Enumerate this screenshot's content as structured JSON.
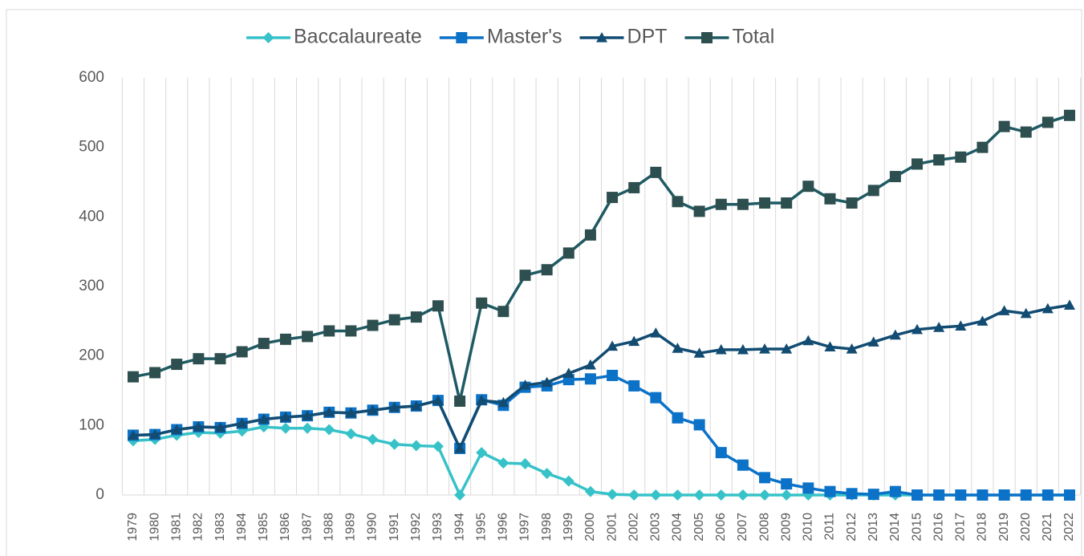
{
  "chart_data": {
    "type": "line",
    "categories": [
      "1979",
      "1980",
      "1981",
      "1982",
      "1983",
      "1984",
      "1985",
      "1986",
      "1987",
      "1988",
      "1989",
      "1990",
      "1991",
      "1992",
      "1993",
      "1994",
      "1995",
      "1996",
      "1997",
      "1998",
      "1999",
      "2000",
      "2001",
      "2002",
      "2003",
      "2004",
      "2005",
      "2006",
      "2007",
      "2008",
      "2009",
      "2010",
      "2011",
      "2012",
      "2013",
      "2014",
      "2015",
      "2016",
      "2017",
      "2018",
      "2019",
      "2020",
      "2021",
      "2022"
    ],
    "series": [
      {
        "name": "Baccalaureate",
        "color": "#36c2c8",
        "marker": "diamond",
        "values": [
          78,
          80,
          86,
          90,
          89,
          92,
          98,
          96,
          96,
          94,
          88,
          80,
          73,
          71,
          70,
          0,
          61,
          46,
          45,
          31,
          20,
          5,
          1,
          0,
          0,
          0,
          0,
          0,
          0,
          0,
          0,
          0,
          0,
          0,
          0,
          0,
          0,
          0,
          0,
          0,
          0,
          0,
          0,
          0
        ]
      },
      {
        "name": "Master's",
        "color": "#0b72c8",
        "marker": "square",
        "values": [
          86,
          87,
          94,
          98,
          97,
          103,
          109,
          112,
          114,
          119,
          118,
          122,
          126,
          128,
          136,
          67,
          137,
          129,
          155,
          157,
          166,
          167,
          172,
          157,
          140,
          111,
          101,
          61,
          43,
          25,
          16,
          10,
          5,
          2,
          1,
          5,
          0,
          0,
          0,
          0,
          0,
          0,
          0,
          0
        ]
      },
      {
        "name": "DPT",
        "color": "#124c72",
        "marker": "triangle",
        "values": [
          86,
          87,
          94,
          98,
          97,
          103,
          109,
          112,
          114,
          119,
          118,
          122,
          126,
          128,
          136,
          67,
          136,
          133,
          158,
          162,
          175,
          187,
          214,
          221,
          233,
          211,
          204,
          209,
          209,
          210,
          210,
          222,
          213,
          210,
          220,
          230,
          238,
          241,
          243,
          250,
          265,
          261,
          268,
          273
        ]
      },
      {
        "name": "Total",
        "color": "#1e5a63",
        "marker": "square",
        "values": [
          170,
          176,
          188,
          196,
          196,
          206,
          218,
          224,
          228,
          236,
          236,
          244,
          252,
          256,
          272,
          135,
          276,
          264,
          316,
          324,
          348,
          374,
          428,
          442,
          464,
          422,
          408,
          418,
          418,
          420,
          420,
          444,
          426,
          420,
          438,
          458,
          476,
          482,
          486,
          500,
          530,
          522,
          536,
          546
        ]
      }
    ],
    "ylim": [
      0,
      600
    ],
    "yticks": [
      0,
      100,
      200,
      300,
      400,
      500,
      600
    ],
    "grid": "x",
    "legend": "top"
  }
}
